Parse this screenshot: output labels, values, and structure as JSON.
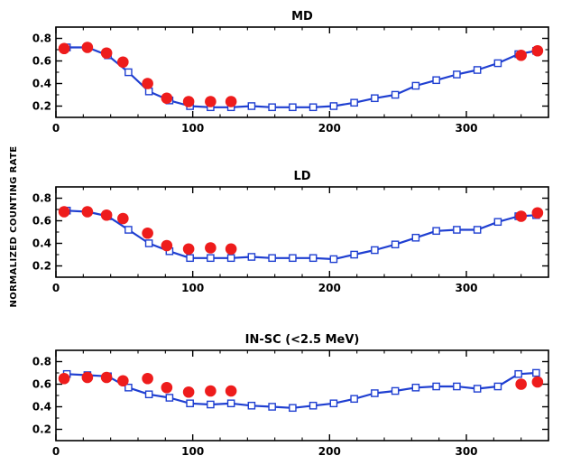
{
  "ylabel": "NORMALIZED COUNTING RATE",
  "colors": {
    "model": "#1f3fd1",
    "observed": "#ee1c1c",
    "axis": "#000000"
  },
  "chart_data": [
    {
      "type": "line",
      "title": "MD",
      "xlim": [
        0,
        360
      ],
      "ylim": [
        0.1,
        0.9
      ],
      "xticks": [
        0,
        100,
        200,
        300
      ],
      "yticks": [
        0.2,
        0.4,
        0.6,
        0.8
      ],
      "series": [
        {
          "marker": "open-square",
          "x": [
            8,
            23,
            38,
            53,
            68,
            83,
            98,
            113,
            128,
            143,
            158,
            173,
            188,
            203,
            218,
            233,
            248,
            263,
            278,
            293,
            308,
            323,
            338,
            351
          ],
          "y": [
            0.72,
            0.72,
            0.65,
            0.5,
            0.33,
            0.25,
            0.2,
            0.19,
            0.19,
            0.2,
            0.19,
            0.19,
            0.19,
            0.2,
            0.23,
            0.27,
            0.3,
            0.38,
            0.43,
            0.48,
            0.52,
            0.58,
            0.66,
            0.69
          ]
        },
        {
          "marker": "filled-circle",
          "x": [
            6,
            23,
            37,
            49,
            67,
            81,
            97,
            113,
            128,
            340,
            352
          ],
          "y": [
            0.71,
            0.72,
            0.67,
            0.59,
            0.4,
            0.27,
            0.24,
            0.24,
            0.24,
            0.65,
            0.69
          ]
        }
      ]
    },
    {
      "type": "line",
      "title": "LD",
      "xlim": [
        0,
        360
      ],
      "ylim": [
        0.1,
        0.9
      ],
      "xticks": [
        0,
        100,
        200,
        300
      ],
      "yticks": [
        0.2,
        0.4,
        0.6,
        0.8
      ],
      "series": [
        {
          "marker": "open-square",
          "x": [
            8,
            23,
            38,
            53,
            68,
            83,
            98,
            113,
            128,
            143,
            158,
            173,
            188,
            203,
            218,
            233,
            248,
            263,
            278,
            293,
            308,
            323,
            338,
            351
          ],
          "y": [
            0.69,
            0.68,
            0.64,
            0.52,
            0.4,
            0.33,
            0.27,
            0.27,
            0.27,
            0.28,
            0.27,
            0.27,
            0.27,
            0.26,
            0.3,
            0.34,
            0.39,
            0.45,
            0.51,
            0.52,
            0.52,
            0.59,
            0.64,
            0.65
          ]
        },
        {
          "marker": "filled-circle",
          "x": [
            6,
            23,
            37,
            49,
            67,
            81,
            97,
            113,
            128,
            340,
            352
          ],
          "y": [
            0.68,
            0.68,
            0.65,
            0.62,
            0.49,
            0.38,
            0.35,
            0.36,
            0.35,
            0.64,
            0.67
          ]
        }
      ]
    },
    {
      "type": "line",
      "title": "IN-SC (<2.5 MeV)",
      "xlim": [
        0,
        360
      ],
      "ylim": [
        0.1,
        0.9
      ],
      "xticks": [
        0,
        100,
        200,
        300
      ],
      "yticks": [
        0.2,
        0.4,
        0.6,
        0.8
      ],
      "series": [
        {
          "marker": "open-square",
          "x": [
            8,
            23,
            38,
            53,
            68,
            83,
            98,
            113,
            128,
            143,
            158,
            173,
            188,
            203,
            218,
            233,
            248,
            263,
            278,
            293,
            308,
            323,
            338,
            351
          ],
          "y": [
            0.69,
            0.68,
            0.67,
            0.57,
            0.51,
            0.48,
            0.43,
            0.42,
            0.43,
            0.41,
            0.4,
            0.39,
            0.41,
            0.43,
            0.47,
            0.52,
            0.54,
            0.57,
            0.58,
            0.58,
            0.56,
            0.58,
            0.69,
            0.7
          ]
        },
        {
          "marker": "filled-circle",
          "x": [
            6,
            23,
            37,
            49,
            67,
            81,
            97,
            113,
            128,
            340,
            352
          ],
          "y": [
            0.65,
            0.66,
            0.66,
            0.63,
            0.65,
            0.57,
            0.53,
            0.54,
            0.54,
            0.6,
            0.62
          ]
        }
      ]
    }
  ]
}
